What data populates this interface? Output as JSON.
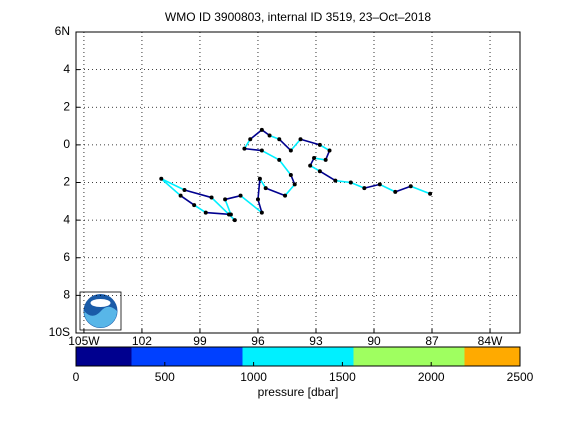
{
  "chart_data": {
    "type": "track",
    "title": "WMO ID 3900803, internal ID 3519, 23–Oct–2018",
    "xlim": [
      -105.41,
      -82.45
    ],
    "ylim": [
      -10,
      6
    ],
    "xticks": [
      {
        "value": -105,
        "label": "105W"
      },
      {
        "value": -102,
        "label": "102"
      },
      {
        "value": -99,
        "label": "99"
      },
      {
        "value": -96,
        "label": "96"
      },
      {
        "value": -93,
        "label": "93"
      },
      {
        "value": -90,
        "label": "90"
      },
      {
        "value": -87,
        "label": "87"
      },
      {
        "value": -84,
        "label": "84W"
      }
    ],
    "yticks": [
      {
        "value": 6,
        "label": "6N"
      },
      {
        "value": 4,
        "label": "4"
      },
      {
        "value": 2,
        "label": "2"
      },
      0,
      {
        "value": -2,
        "label": "2"
      },
      {
        "value": -4,
        "label": "4"
      },
      {
        "value": -6,
        "label": "6"
      },
      {
        "value": -8,
        "label": "8"
      },
      {
        "value": -10,
        "label": "10S"
      }
    ],
    "grid": true,
    "marker_color": "#000000",
    "x": [
      -87.1,
      -88.1,
      -88.9,
      -89.7,
      -90.5,
      -91.2,
      -92.0,
      -92.8,
      -93.3,
      -93.1,
      -92.5,
      -92.3,
      -92.8,
      -93.8,
      -94.3,
      -94.9,
      -95.4,
      -95.8,
      -96.4,
      -96.7,
      -95.8,
      -94.9,
      -94.3,
      -94.1,
      -94.6,
      -95.6,
      -95.9,
      -96.0,
      -95.8,
      -96.9,
      -97.7,
      -97.4,
      -98.7,
      -99.3,
      -100.0,
      -101.0,
      -99.8,
      -98.4,
      -97.5,
      -97.2
    ],
    "y": [
      -2.6,
      -2.2,
      -2.5,
      -2.1,
      -2.3,
      -2.0,
      -1.9,
      -1.4,
      -1.1,
      -0.7,
      -0.8,
      -0.3,
      0.0,
      0.3,
      -0.3,
      0.3,
      0.5,
      0.8,
      0.3,
      -0.2,
      -0.3,
      -0.8,
      -1.6,
      -2.1,
      -2.7,
      -2.3,
      -1.8,
      -2.9,
      -3.6,
      -2.7,
      -2.9,
      -3.7,
      -3.6,
      -3.2,
      -2.7,
      -1.8,
      -2.4,
      -2.8,
      -3.7,
      -4.0
    ],
    "pressure": [
      200,
      1000,
      200,
      1000,
      200,
      1000,
      1000,
      200,
      1000,
      200,
      1000,
      200,
      1000,
      200,
      1000,
      200,
      1000,
      200,
      200,
      1000,
      200,
      1000,
      1000,
      200,
      1000,
      200,
      1000,
      200,
      200,
      1000,
      200,
      1000,
      200,
      1000,
      200,
      1000,
      1000,
      200,
      1000,
      1000
    ],
    "colorbar": {
      "label": "pressure [dbar]",
      "bins": [
        0,
        312.5,
        937.5,
        1562.5,
        2187.5,
        2500
      ],
      "colors": [
        "#00008f",
        "#0040ff",
        "#00f0ff",
        "#9fff60",
        "#ffaa00"
      ],
      "xlim": [
        0,
        2500
      ],
      "xticks": [
        0,
        500,
        1000,
        1500,
        2000,
        2500
      ]
    }
  }
}
